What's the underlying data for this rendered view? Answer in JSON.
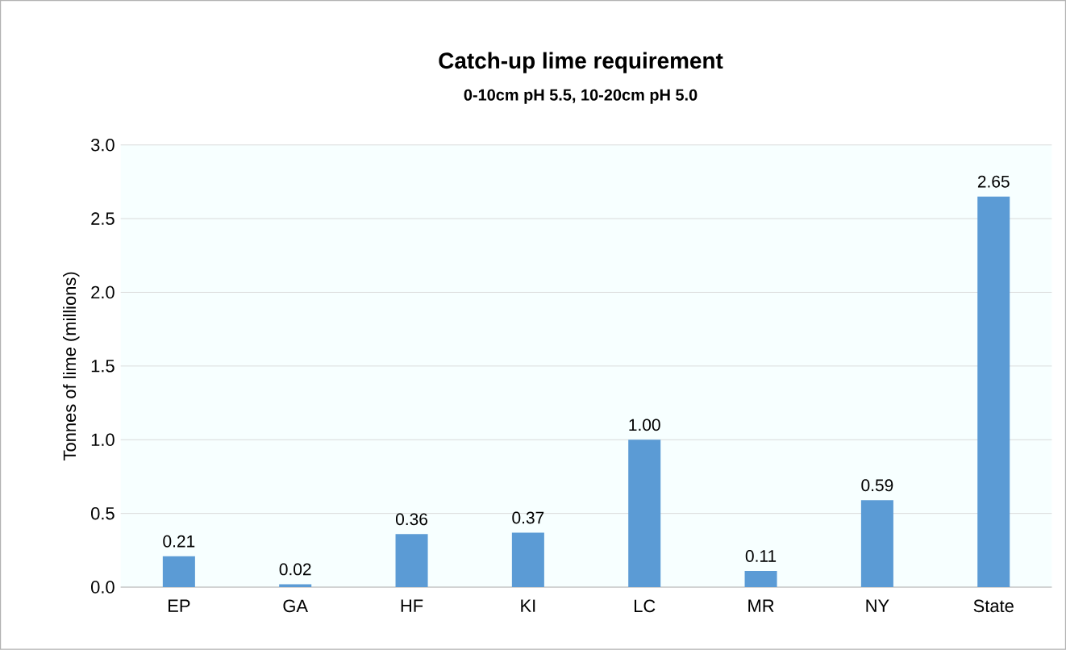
{
  "chart_data": {
    "type": "bar",
    "title": "Catch-up lime requirement",
    "subtitle": "0-10cm pH 5.5, 10-20cm pH 5.0",
    "ylabel": "Tonnes of lime (millions)",
    "categories": [
      "EP",
      "GA",
      "HF",
      "KI",
      "LC",
      "MR",
      "NY",
      "State"
    ],
    "values": [
      0.21,
      0.02,
      0.36,
      0.37,
      1.0,
      0.11,
      0.59,
      2.65
    ],
    "value_labels": [
      "0.21",
      "0.02",
      "0.36",
      "0.37",
      "1.00",
      "0.11",
      "0.59",
      "2.65"
    ],
    "color": "#5b9bd5",
    "ylim": [
      0,
      3
    ],
    "yticks": [
      {
        "value": 0,
        "label": "0.0"
      },
      {
        "value": 0.5,
        "label": "0.5"
      },
      {
        "value": 1,
        "label": "1.0"
      },
      {
        "value": 1.5,
        "label": "1.5"
      },
      {
        "value": 2,
        "label": "2.0"
      },
      {
        "value": 2.5,
        "label": "2.5"
      },
      {
        "value": 3,
        "label": "3.0"
      }
    ],
    "grid": "y"
  }
}
